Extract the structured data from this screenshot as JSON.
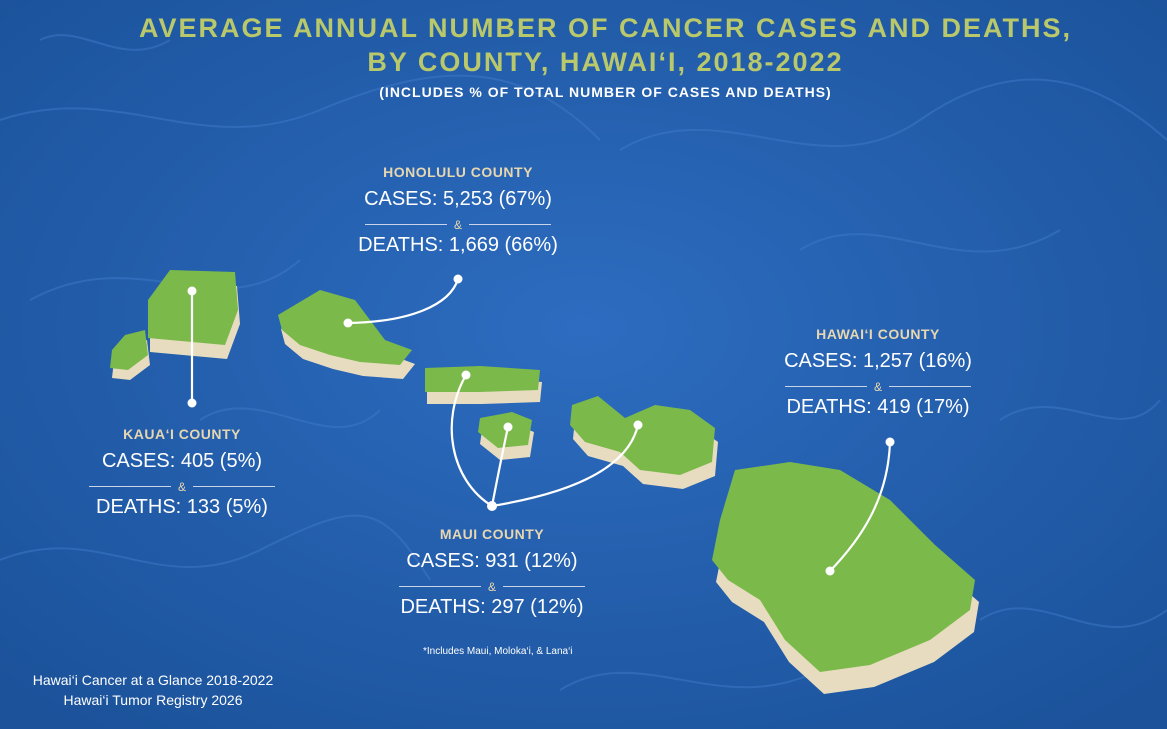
{
  "title_line1": "AVERAGE ANNUAL NUMBER OF CANCER CASES AND DEATHS,",
  "title_line2": "BY COUNTY, HAWAI‘I, 2018-2022",
  "subtitle": "(INCLUDES % OF TOTAL NUMBER OF CASES AND DEATHS)",
  "colors": {
    "ocean": "#1f5fae",
    "land": "#7bb94b",
    "land_edge": "#e8dcc0",
    "title": "#b9c86a",
    "county_name": "#e7d7b0"
  },
  "counties": {
    "honolulu": {
      "name": "HONOLULU COUNTY",
      "cases": "CASES: 5,253 (67%)",
      "amp": "&",
      "deaths": "DEATHS: 1,669 (66%)"
    },
    "kauai": {
      "name": "KAUA‘I COUNTY",
      "cases": "CASES: 405 (5%)",
      "amp": "&",
      "deaths": "DEATHS: 133 (5%)"
    },
    "maui": {
      "name": "MAUI COUNTY",
      "cases": "CASES: 931 (12%)",
      "amp": "&",
      "deaths": "DEATHS: 297 (12%)"
    },
    "hawaii": {
      "name": "HAWAI‘I COUNTY",
      "cases": "CASES: 1,257 (16%)",
      "amp": "&",
      "deaths": "DEATHS: 419 (17%)"
    }
  },
  "footnote": "*Includes Maui, Moloka‘i, & Lana‘i",
  "source_line1": "Hawai‘i Cancer at a Glance 2018-2022",
  "source_line2": "Hawai‘i Tumor Registry 2026"
}
